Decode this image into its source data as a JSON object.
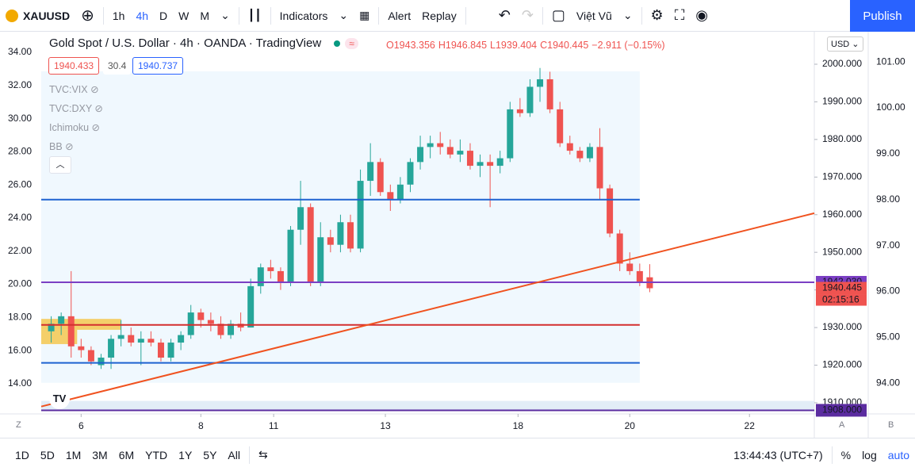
{
  "toolbar": {
    "symbol": "XAUUSD",
    "intervals": [
      "1h",
      "4h",
      "D",
      "W",
      "M"
    ],
    "indicators": "Indicators",
    "alert": "Alert",
    "replay": "Replay",
    "user": "Việt Vũ",
    "publish": "Publish"
  },
  "legend": {
    "title": "Gold Spot / U.S. Dollar · 4h · OANDA · TradingView",
    "ohlc": [
      "O1943.356",
      "H1946.845",
      "L1939.404",
      "C1940.445",
      "−2.911 (−0.15%)"
    ],
    "boxes": [
      "1940.433",
      "30.4",
      "1940.737"
    ],
    "studies": [
      "TVC:VIX",
      "TVC:DXY",
      "Ichimoku",
      "BB"
    ]
  },
  "currency": "USD",
  "axis_buttons": [
    "Z",
    "A",
    "B"
  ],
  "bottom": {
    "ranges": [
      "1D",
      "5D",
      "1M",
      "3M",
      "6M",
      "YTD",
      "1Y",
      "5Y",
      "All"
    ],
    "clock": "13:44:43 (UTC+7)",
    "options": [
      "%",
      "log",
      "auto"
    ]
  },
  "chart_data": {
    "type": "candlestick",
    "open": [
      1929,
      1931,
      1933,
      1925,
      1924,
      1920,
      1922,
      1927,
      1928,
      1926,
      1927,
      1926,
      1922,
      1926,
      1928,
      1934,
      1932,
      1931,
      1928,
      1931,
      1930,
      1941,
      1946,
      1945,
      1942,
      1956,
      1962,
      1942,
      1954,
      1952,
      1958,
      1951,
      1969,
      1974,
      1966,
      1964,
      1968,
      1974,
      1978,
      1979,
      1978,
      1976,
      1977,
      1973,
      1974,
      1973,
      1975,
      1988,
      1987,
      1994,
      1996,
      1988,
      1979,
      1977,
      1975,
      1978,
      1967,
      1955,
      1947,
      1945,
      1943.356
    ],
    "high": [
      1933,
      1934,
      1945,
      1927,
      1925,
      1923,
      1928,
      1932,
      1930,
      1929,
      1929,
      1927,
      1927,
      1929,
      1936,
      1935,
      1934,
      1933,
      1932,
      1934,
      1943,
      1947,
      1948,
      1946,
      1957,
      1969,
      1963,
      1958,
      1956,
      1960,
      1960,
      1972,
      1979,
      1975,
      1968,
      1970,
      1975,
      1981,
      1981,
      1982,
      1980,
      1980,
      1979,
      1976,
      1976,
      1977,
      1990,
      1991,
      1996,
      1999,
      1998,
      1990,
      1981,
      1978,
      1979,
      1983,
      1968,
      1956,
      1950,
      1947,
      1946.845
    ],
    "low": [
      1926,
      1928,
      1922,
      1922,
      1920,
      1919,
      1919,
      1925,
      1925,
      1920,
      1925,
      1921,
      1921,
      1924,
      1927,
      1930,
      1929,
      1927,
      1927,
      1929,
      1930,
      1939,
      1943,
      1940,
      1941,
      1952,
      1941,
      1941,
      1950,
      1950,
      1950,
      1950,
      1965,
      1965,
      1961,
      1963,
      1966,
      1972,
      1975,
      1976,
      1975,
      1974,
      1972,
      1970,
      1962,
      1971,
      1974,
      1986,
      1986,
      1990,
      1987,
      1978,
      1976,
      1974,
      1974,
      1964,
      1954,
      1945,
      1944,
      1941,
      1939.404
    ],
    "close": [
      1931,
      1933,
      1925,
      1924,
      1921,
      1922,
      1927,
      1928,
      1926,
      1927,
      1926,
      1922,
      1926,
      1928,
      1934,
      1932,
      1931,
      1928,
      1931,
      1930,
      1941,
      1946,
      1945,
      1942,
      1956,
      1962,
      1942,
      1954,
      1952,
      1958,
      1951,
      1969,
      1974,
      1966,
      1964,
      1968,
      1974,
      1978,
      1979,
      1978,
      1976,
      1977,
      1973,
      1974,
      1973,
      1975,
      1988,
      1987,
      1994,
      1996,
      1988,
      1979,
      1977,
      1975,
      1978,
      1967,
      1955,
      1947,
      1945,
      1942,
      1940.445
    ],
    "up_color": "#26a69a",
    "down_color": "#ef5350",
    "xlim": [
      -1,
      76.5
    ],
    "xticks": [
      {
        "value": 3,
        "label": "6"
      },
      {
        "value": 15,
        "label": "8"
      },
      {
        "value": 22.3,
        "label": "11"
      },
      {
        "value": 33.5,
        "label": "13"
      },
      {
        "value": 46.8,
        "label": "18"
      },
      {
        "value": 58,
        "label": "20"
      },
      {
        "value": 70,
        "label": "22"
      }
    ],
    "ylim": [
      1907.04,
      2008.64
    ],
    "yticks": [
      {
        "value": 1910,
        "label": "1910.000"
      },
      {
        "value": 1920,
        "label": "1920.000"
      },
      {
        "value": 1930,
        "label": "1930.000"
      },
      {
        "value": 1940,
        "label": "1940.000"
      },
      {
        "value": 1950,
        "label": "1950.000"
      },
      {
        "value": 1960,
        "label": "1960.000"
      },
      {
        "value": 1970,
        "label": "1970.000"
      },
      {
        "value": 1980,
        "label": "1980.000"
      },
      {
        "value": 1990,
        "label": "1990.000"
      },
      {
        "value": 2000,
        "label": "2000.000"
      }
    ],
    "y2lim": [
      12.18,
      35.244
    ],
    "y2ticks": [
      {
        "value": 14,
        "label": "14.00"
      },
      {
        "value": 16,
        "label": "16.00"
      },
      {
        "value": 18,
        "label": "18.00"
      },
      {
        "value": 20,
        "label": "20.00"
      },
      {
        "value": 22,
        "label": "22.00"
      },
      {
        "value": 24,
        "label": "24.00"
      },
      {
        "value": 26,
        "label": "26.00"
      },
      {
        "value": 28,
        "label": "28.00"
      },
      {
        "value": 30,
        "label": "30.00"
      },
      {
        "value": 32,
        "label": "32.00"
      },
      {
        "value": 34,
        "label": "34.00"
      }
    ],
    "y3lim": [
      93.33,
      101.66
    ],
    "y3ticks": [
      {
        "value": 94,
        "label": "94.00"
      },
      {
        "value": 95,
        "label": "95.00"
      },
      {
        "value": 96,
        "label": "96.00"
      },
      {
        "value": 97,
        "label": "97.00"
      },
      {
        "value": 98,
        "label": "98.00"
      },
      {
        "value": 99,
        "label": "99.00"
      },
      {
        "value": 100,
        "label": "100.00"
      },
      {
        "value": 101,
        "label": "101.00"
      }
    ],
    "price_labels": [
      {
        "value": 1942.03,
        "label": "1942.030",
        "color": "#7b3fc4"
      },
      {
        "value": 1940.445,
        "label": "1940.445",
        "color": "#ef5350"
      },
      {
        "value": 1908,
        "label": "1908.000",
        "color": "#5b2ca0"
      }
    ],
    "countdown": "02:15:16",
    "zones": [
      {
        "x": [
          -1,
          59
        ],
        "y": [
          1915.3,
          1998.1
        ],
        "color": "#e3f2fd"
      },
      {
        "x": [
          -1,
          7
        ],
        "y": [
          1929.4,
          1932.3
        ],
        "color": "#f5c445"
      },
      {
        "x": [
          -1,
          2.6
        ],
        "y": [
          1925.6,
          1929.4
        ],
        "color": "#f5c445"
      },
      {
        "x": [
          -1,
          76.5
        ],
        "y": [
          1908,
          1910.5
        ],
        "color": "#dbe8f5"
      }
    ],
    "hlines": [
      {
        "value": 1964,
        "x": [
          -1,
          59
        ],
        "color": "#1e62d0"
      },
      {
        "value": 1942.03,
        "x": [
          -1,
          76.5
        ],
        "color": "#7b3fc4"
      },
      {
        "value": 1930.7,
        "x": [
          -1,
          59
        ],
        "color": "#d32f2f"
      },
      {
        "value": 1920.6,
        "x": [
          -1,
          59
        ],
        "color": "#1e62d0"
      },
      {
        "value": 1908,
        "x": [
          -1,
          76.5
        ],
        "color": "#5b2ca0"
      }
    ],
    "trendline": {
      "x": [
        -1,
        76.5
      ],
      "y": [
        1909,
        1960.4
      ],
      "color": "#f0521f"
    }
  }
}
